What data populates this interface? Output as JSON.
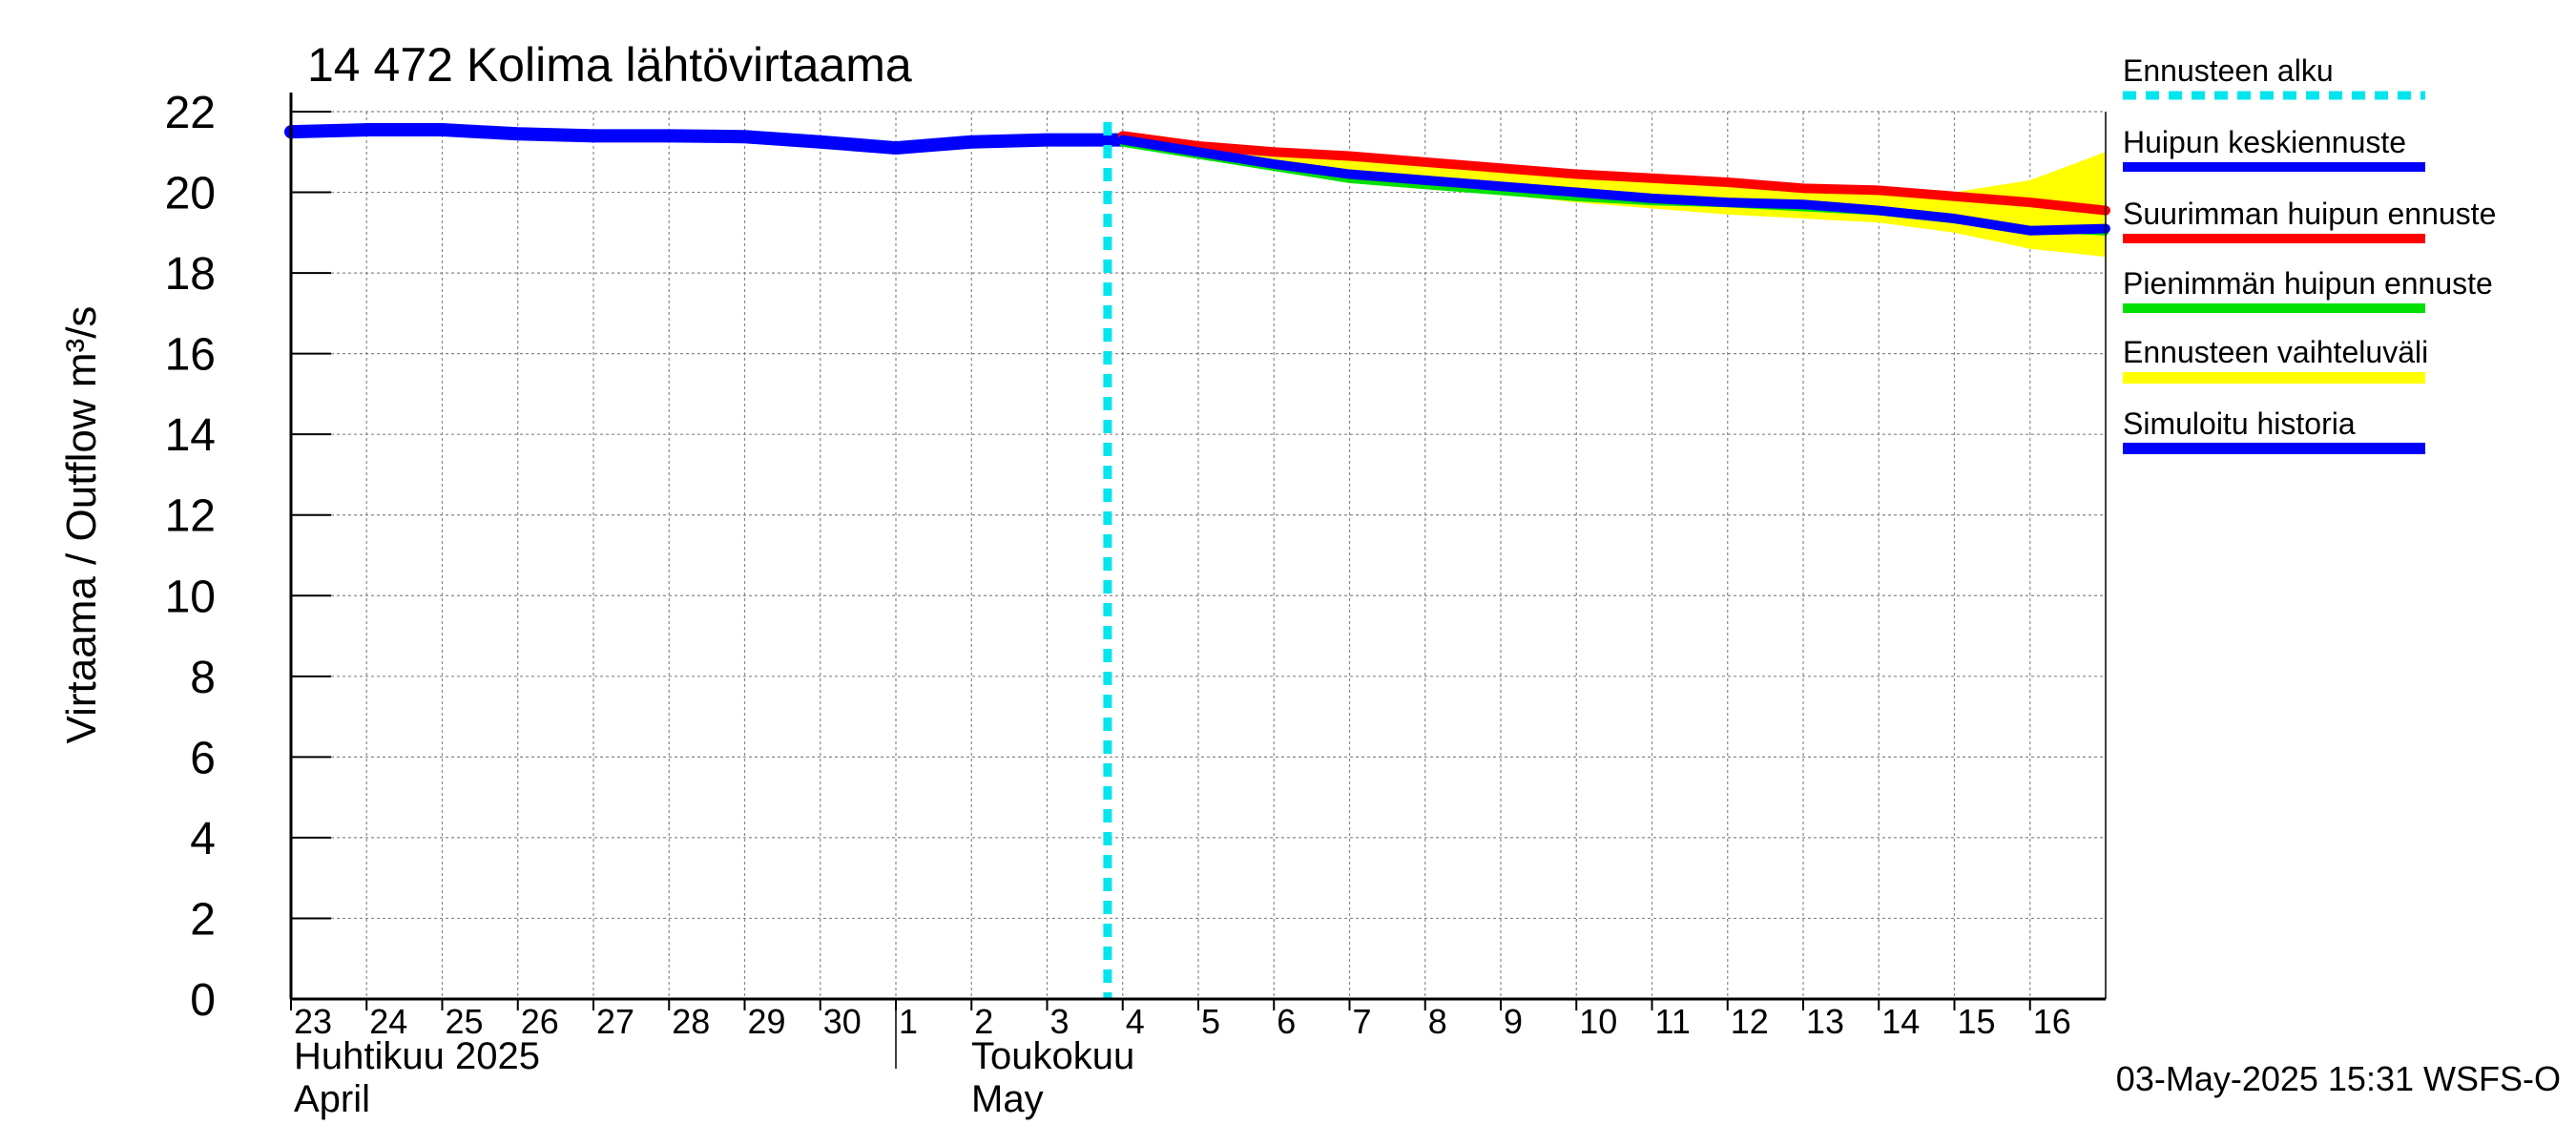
{
  "chart_data": {
    "type": "line",
    "title": "14 472 Kolima lähtövirtaama",
    "ylabel": "Virtaama / Outflow    m³/s",
    "ylim": [
      0,
      22
    ],
    "yticks": [
      0,
      2,
      4,
      6,
      8,
      10,
      12,
      14,
      16,
      18,
      20,
      22
    ],
    "xlim": [
      23,
      47
    ],
    "day_labels": [
      "23",
      "24",
      "25",
      "26",
      "27",
      "28",
      "29",
      "30",
      "1",
      "2",
      "3",
      "4",
      "5",
      "6",
      "7",
      "8",
      "9",
      "10",
      "11",
      "12",
      "13",
      "14",
      "15",
      "16"
    ],
    "months": [
      {
        "line1": "Huhtikuu  2025",
        "line2": "April"
      },
      {
        "line1": "Toukokuu",
        "line2": "May"
      }
    ],
    "month_boundary_x": 31,
    "forecast_start_x": 33.8,
    "footer": "03-May-2025 15:31 WSFS-O",
    "grid": true,
    "legend": [
      {
        "label": "Ennusteen alku",
        "color": "#00e5ee",
        "style": "dotted"
      },
      {
        "label": "Huipun keskiennuste",
        "color": "#0000ff",
        "style": "solid"
      },
      {
        "label": "Suurimman huipun ennuste",
        "color": "#ff0000",
        "style": "solid"
      },
      {
        "label": "Pienimmän huipun ennuste",
        "color": "#00e000",
        "style": "solid"
      },
      {
        "label": "Ennusteen vaihteluväli",
        "color": "#ffff00",
        "style": "solid"
      },
      {
        "label": "Simuloitu historia",
        "color": "#0000ff",
        "style": "solid"
      }
    ],
    "series": [
      {
        "name": "Simuloitu historia",
        "color": "#0000ff",
        "x": [
          23,
          24,
          25,
          26,
          27,
          28,
          29,
          30,
          31,
          32,
          33,
          34
        ],
        "y": [
          21.5,
          21.55,
          21.55,
          21.45,
          21.4,
          21.4,
          21.38,
          21.25,
          21.1,
          21.25,
          21.3,
          21.3
        ]
      },
      {
        "name": "Ennusteen vaihteluväli",
        "color": "#ffff00",
        "type": "band",
        "x": [
          34,
          35,
          36,
          37,
          38,
          39,
          40,
          41,
          42,
          43,
          44,
          45,
          46,
          47
        ],
        "upper": [
          21.4,
          21.2,
          21.0,
          20.9,
          20.75,
          20.6,
          20.45,
          20.35,
          20.2,
          20.1,
          20.05,
          20.0,
          20.3,
          21.0
        ],
        "lower": [
          21.2,
          20.85,
          20.55,
          20.25,
          20.1,
          19.95,
          19.75,
          19.6,
          19.45,
          19.35,
          19.25,
          19.0,
          18.6,
          18.4
        ]
      },
      {
        "name": "Pienimmän huipun ennuste",
        "color": "#00e000",
        "x": [
          34,
          35,
          36,
          37,
          38,
          39,
          40,
          41,
          42,
          43,
          44,
          45,
          46,
          47
        ],
        "y": [
          21.2,
          20.9,
          20.6,
          20.3,
          20.15,
          20.0,
          19.85,
          19.75,
          19.7,
          19.6,
          19.5,
          19.3,
          19.1,
          19.0
        ]
      },
      {
        "name": "Suurimman huipun ennuste",
        "color": "#ff0000",
        "x": [
          34,
          35,
          36,
          37,
          38,
          39,
          40,
          41,
          42,
          43,
          44,
          45,
          46,
          47
        ],
        "y": [
          21.4,
          21.15,
          21.0,
          20.9,
          20.75,
          20.6,
          20.45,
          20.35,
          20.25,
          20.1,
          20.05,
          19.9,
          19.75,
          19.55
        ]
      },
      {
        "name": "Huipun keskiennuste",
        "color": "#0000ff",
        "x": [
          34,
          35,
          36,
          37,
          38,
          39,
          40,
          41,
          42,
          43,
          44,
          45,
          46,
          47
        ],
        "y": [
          21.3,
          21.0,
          20.7,
          20.45,
          20.3,
          20.15,
          20.0,
          19.85,
          19.75,
          19.7,
          19.55,
          19.35,
          19.05,
          19.1
        ]
      }
    ]
  }
}
